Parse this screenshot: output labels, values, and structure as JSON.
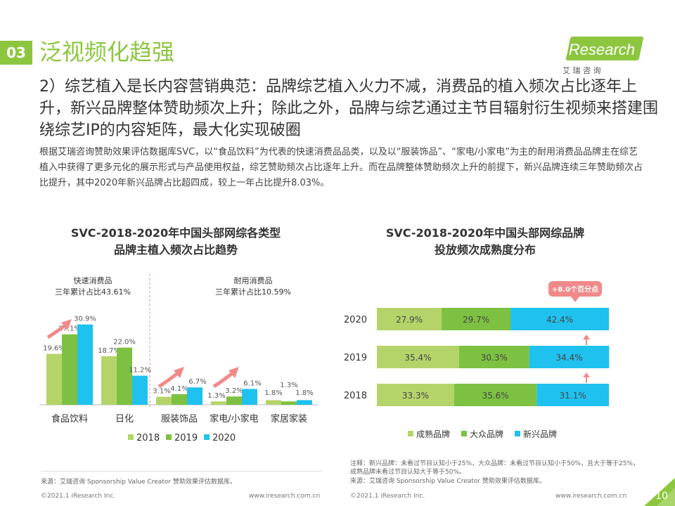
{
  "section": {
    "number": "03",
    "title": "泛视频化趋强"
  },
  "logo": {
    "text": "iResearch",
    "sub": "艾 瑞 咨 询"
  },
  "subtitle": "2）综艺植入是长内容营销典范：品牌综艺植入火力不减，消费品的植入频次占比逐年上升，新兴品牌整体赞助频次上升；除此之外，品牌与综艺通过主节目辐射衍生视频来搭建围绕综艺IP的内容矩阵，最大化实现破圈",
  "body": "根据艾瑞咨询赞助效果评估数据库SVC，以“食品饮料”为代表的快速消费品品类，以及以“服装饰品”、“家电/小家电”为主的耐用消费品品牌主在综艺植入中获得了更多元化的展示形式与产品使用权益，综艺赞助频次占比逐年上升。而在品牌整体赞助频次上升的前提下，新兴品牌连续三年赞助频次占比提升，其中2020年新兴品牌占比超四成，较上一年占比提升8.03%。",
  "colors": {
    "y2018": "#b4d46a",
    "y2019": "#7dc142",
    "y2020": "#1fc2ee",
    "arrow": "#f08a8a",
    "accent": "#8cc63f"
  },
  "left_chart": {
    "title_line1": "SVC-2018-2020年中国头部网综各类型",
    "title_line2": "品牌主植入频次占比趋势",
    "group_a_label": "快速消费品",
    "group_a_sub": "三年累计占比43.61%",
    "group_b_label": "耐用消费品",
    "group_b_sub": "三年累计占比10.59%",
    "source": "来源：艾瑞咨询 Sponsorship Value Creator 赞助效果评估数据库。",
    "footer_left": "©2021.1 iResearch Inc.",
    "footer_right": "www.iresearch.com.cn"
  },
  "right_chart": {
    "title_line1": "SVC-2018-2020年中国头部网综品牌",
    "title_line2": "投放频次成熟度分布",
    "callout": "+8.0个百分点",
    "note1": "注释：新兴品牌：未看过节目认知小于25%，大众品牌：未看过节目认知小于50%，且大于等于25%，成熟品牌未看过节目认知大于等于50%。",
    "note2": "来源：艾瑞咨询 Sponsorship Value Creator 赞助效果评估数据库。",
    "footer_left": "©2021.1 iResearch Inc.",
    "footer_right": "www.iresearch.com.cn"
  },
  "page_number": "10",
  "chart_data": [
    {
      "type": "bar",
      "categories": [
        "食品饮料",
        "日化",
        "服装饰品",
        "家电/小家电",
        "家居家装"
      ],
      "series": [
        {
          "name": "2018",
          "values": [
            19.6,
            18.7,
            3.1,
            1.3,
            1.8
          ],
          "labels": [
            "19.6%",
            "18.7%",
            "3.1%",
            "1.3%",
            "1.8%"
          ]
        },
        {
          "name": "2019",
          "values": [
            27.1,
            22.0,
            4.1,
            3.2,
            1.3
          ],
          "labels": [
            "27.1%",
            "22.0%",
            "4.1%",
            "3.2%",
            "1.3%"
          ]
        },
        {
          "name": "2020",
          "values": [
            30.9,
            11.2,
            6.7,
            6.1,
            1.8
          ],
          "labels": [
            "30.9%",
            "11.2%",
            "6.7%",
            "6.1%",
            "1.8%"
          ]
        }
      ],
      "ylim": [
        0,
        35
      ],
      "legend": "bottom"
    },
    {
      "type": "bar",
      "stacked": true,
      "orientation": "horizontal",
      "categories": [
        "2020",
        "2019",
        "2018"
      ],
      "series": [
        {
          "name": "成熟品牌",
          "values": [
            27.9,
            35.4,
            33.3
          ],
          "labels": [
            "27.9%",
            "35.4%",
            "33.3%"
          ]
        },
        {
          "name": "大众品牌",
          "values": [
            29.7,
            30.3,
            35.6
          ],
          "labels": [
            "29.7%",
            "30.3%",
            "35.6%"
          ]
        },
        {
          "name": "新兴品牌",
          "values": [
            42.4,
            34.4,
            31.1
          ],
          "labels": [
            "42.4%",
            "34.4%",
            "31.1%"
          ]
        }
      ],
      "xlim": [
        0,
        100
      ],
      "legend": "bottom"
    }
  ]
}
